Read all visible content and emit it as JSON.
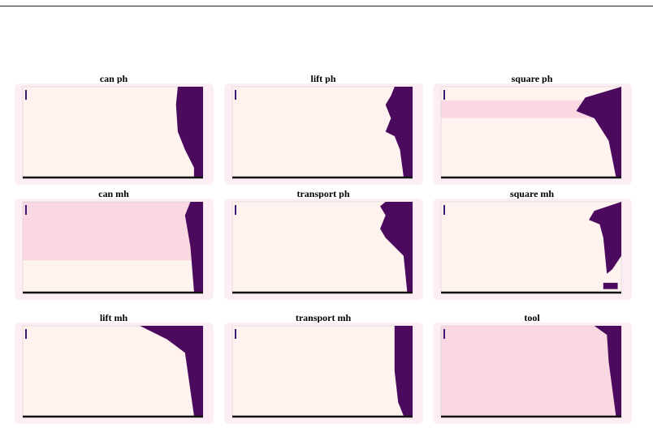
{
  "panels": [
    {
      "title": "can ph"
    },
    {
      "title": "lift ph"
    },
    {
      "title": "square ph"
    },
    {
      "title": "can mh"
    },
    {
      "title": "transport ph"
    },
    {
      "title": "square mh"
    },
    {
      "title": "lift mh"
    },
    {
      "title": "transport mh"
    },
    {
      "title": "tool"
    }
  ]
}
